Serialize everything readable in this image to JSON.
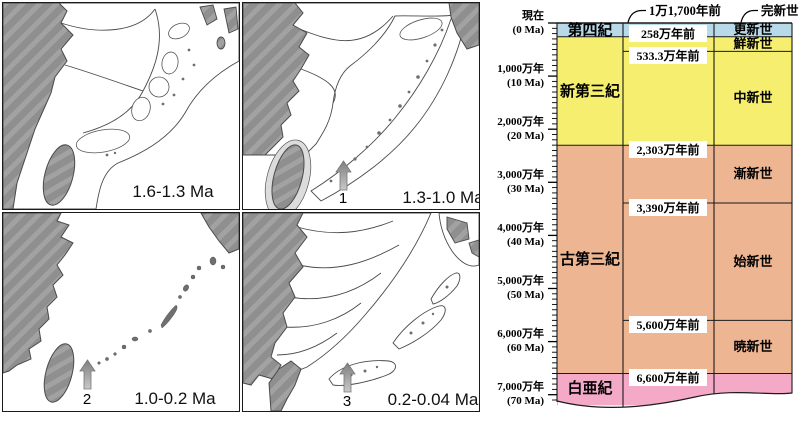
{
  "figure": {
    "map_panels": {
      "p1": {
        "label": "1.6-1.3 Ma"
      },
      "p2": {
        "label": "1.3-1.0 Ma",
        "arrow_label": "1"
      },
      "p3": {
        "label": "1.0-0.2 Ma",
        "arrow_label": "2"
      },
      "p4": {
        "label": "0.2-0.04 Ma",
        "arrow_label": "3"
      }
    },
    "map_colors": {
      "continent": "#8f8f8f",
      "continent_stripe": "#a2a2a2",
      "shelf": "#dcdcdc",
      "sea": "#ffffff",
      "outline": "#4a4a4a"
    }
  },
  "timescale": {
    "axis": {
      "now": "現在",
      "now_sub": "(0 Ma)",
      "minor_step_ma": 1,
      "major_step_ma": 10,
      "max_ma": 71,
      "ticks": [
        {
          "ma": 10,
          "label": "1,000万年",
          "sub": "(10 Ma)"
        },
        {
          "ma": 20,
          "label": "2,000万年",
          "sub": "(20 Ma)"
        },
        {
          "ma": 30,
          "label": "3,000万年",
          "sub": "(30 Ma)"
        },
        {
          "ma": 40,
          "label": "4,000万年",
          "sub": "(40 Ma)"
        },
        {
          "ma": 50,
          "label": "5,000万年",
          "sub": "(50 Ma)"
        },
        {
          "ma": 60,
          "label": "6,000万年",
          "sub": "(60 Ma)"
        },
        {
          "ma": 70,
          "label": "7,000万年",
          "sub": "(70 Ma)"
        }
      ]
    },
    "periods": [
      {
        "label": "第四紀",
        "from_ma": 0,
        "to_ma": 2.58,
        "color": "#b7d9e8"
      },
      {
        "label": "新第三紀",
        "from_ma": 2.58,
        "to_ma": 23.03,
        "color": "#f5ee6e"
      },
      {
        "label": "古第三紀",
        "from_ma": 23.03,
        "to_ma": 66,
        "color": "#eeb593"
      },
      {
        "label": "白亜紀",
        "from_ma": 66,
        "to_ma": 72,
        "color": "#f4a9c6"
      }
    ],
    "epochs": [
      {
        "label": "更新世",
        "from_ma": 0.0117,
        "to_ma": 2.58,
        "color": "#b7d9e8"
      },
      {
        "label": "鮮新世",
        "from_ma": 2.58,
        "to_ma": 5.333,
        "color": "#f5ee6e"
      },
      {
        "label": "中新世",
        "from_ma": 5.333,
        "to_ma": 23.03,
        "color": "#f5ee6e"
      },
      {
        "label": "漸新世",
        "from_ma": 23.03,
        "to_ma": 33.9,
        "color": "#eeb593"
      },
      {
        "label": "始新世",
        "from_ma": 33.9,
        "to_ma": 56,
        "color": "#eeb593"
      },
      {
        "label": "暁新世",
        "from_ma": 56,
        "to_ma": 66,
        "color": "#eeb593"
      },
      {
        "label": "",
        "from_ma": 66,
        "to_ma": 72,
        "color": "#f4a9c6"
      }
    ],
    "boundaries": [
      {
        "label": "258万年前",
        "ma": 2.58,
        "span": "full"
      },
      {
        "label": "533.3万年前",
        "ma": 5.333,
        "span": "right"
      },
      {
        "label": "2,303万年前",
        "ma": 23.03,
        "span": "full"
      },
      {
        "label": "3,390万年前",
        "ma": 33.9,
        "span": "right"
      },
      {
        "label": "5,600万年前",
        "ma": 56,
        "span": "right"
      },
      {
        "label": "6,600万年前",
        "ma": 66,
        "span": "full"
      }
    ],
    "annotations": {
      "holocene_boundary": "1万1,700年前",
      "holocene": "完新世"
    }
  }
}
